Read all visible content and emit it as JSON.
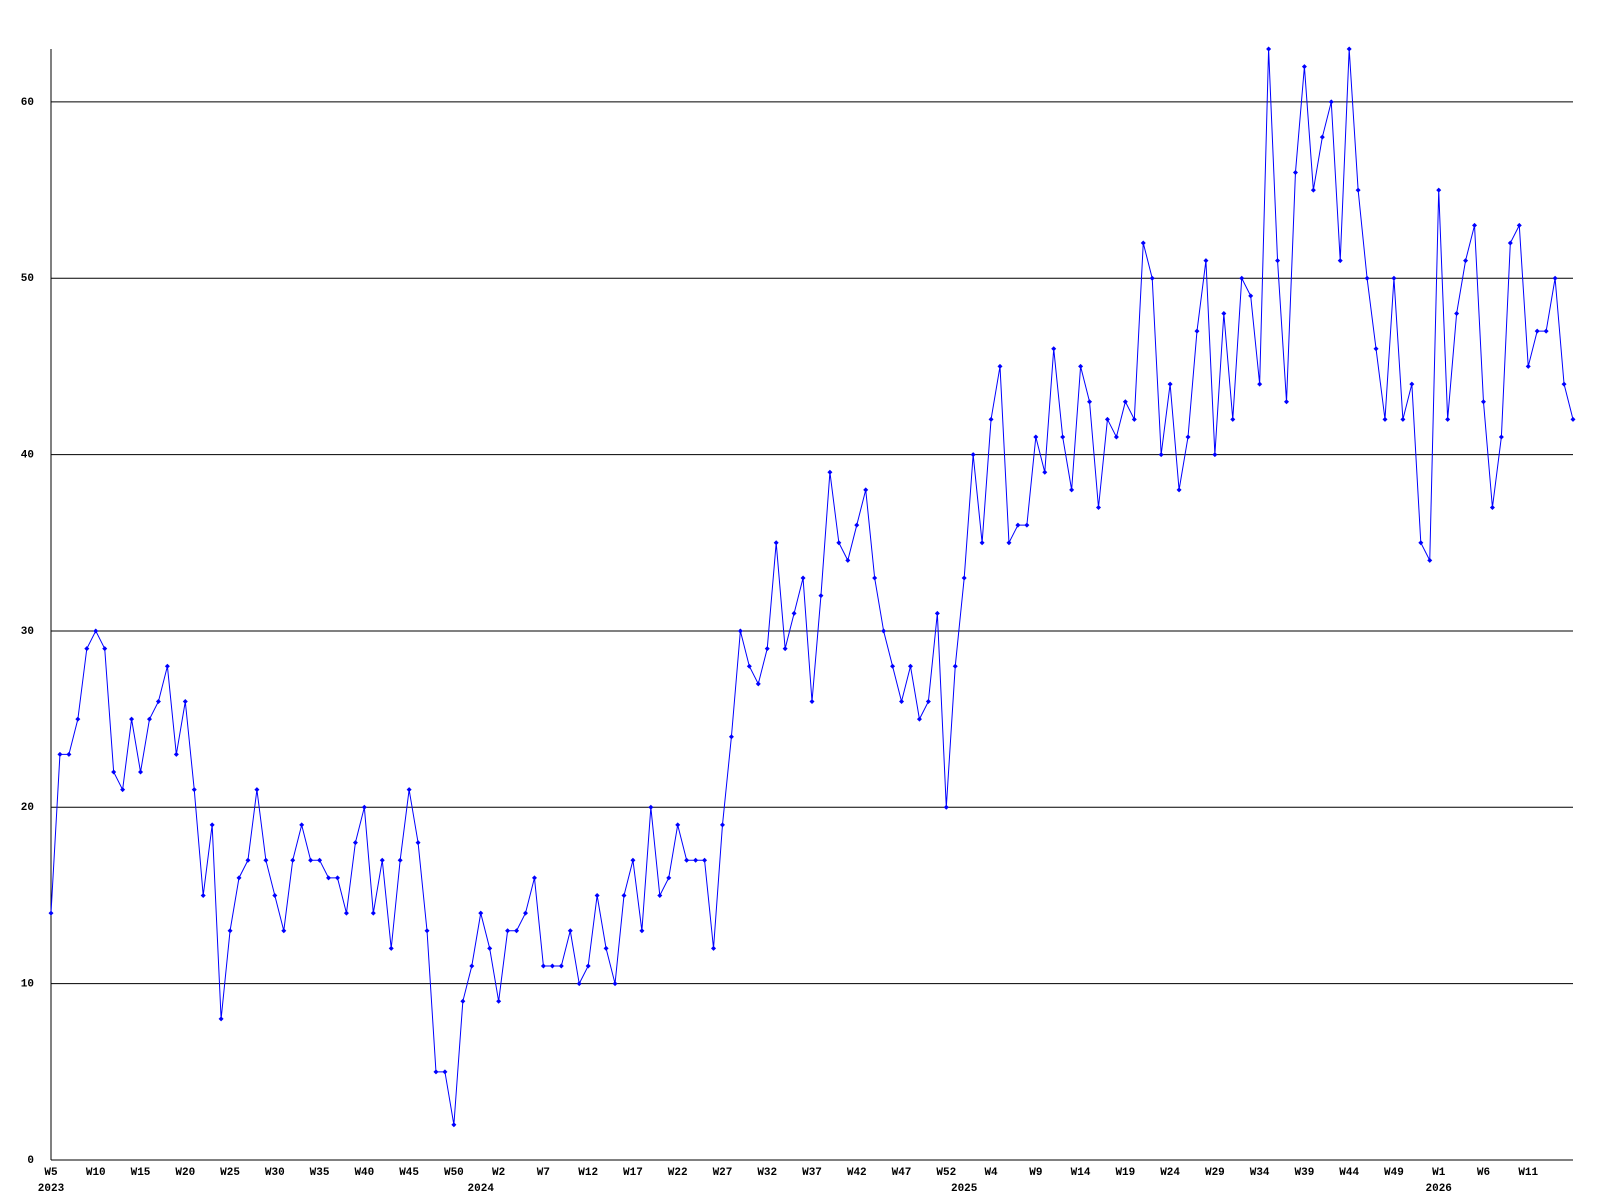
{
  "chart_data": {
    "type": "line",
    "categories": [
      "W5",
      null,
      null,
      null,
      null,
      "W10",
      null,
      null,
      null,
      null,
      "W15",
      null,
      null,
      null,
      null,
      "W20",
      null,
      null,
      null,
      null,
      "W25",
      null,
      null,
      null,
      null,
      "W30",
      null,
      null,
      null,
      null,
      "W35",
      null,
      null,
      null,
      null,
      "W40",
      null,
      null,
      null,
      null,
      "W45",
      null,
      null,
      null,
      null,
      "W50",
      null,
      null,
      null,
      null,
      "W2",
      null,
      null,
      null,
      null,
      "W7",
      null,
      null,
      null,
      null,
      "W12",
      null,
      null,
      null,
      null,
      "W17",
      null,
      null,
      null,
      null,
      "W22",
      null,
      null,
      null,
      null,
      "W27",
      null,
      null,
      null,
      null,
      "W32",
      null,
      null,
      null,
      null,
      "W37",
      null,
      null,
      null,
      null,
      "W42",
      null,
      null,
      null,
      null,
      "W47",
      null,
      null,
      null,
      null,
      "W52",
      null,
      null,
      null,
      null,
      "W4",
      null,
      null,
      null,
      null,
      "W9",
      null,
      null,
      null,
      null,
      "W14",
      null,
      null,
      null,
      null,
      "W19",
      null,
      null,
      null,
      null,
      "W24",
      null,
      null,
      null,
      null,
      "W29",
      null,
      null,
      null,
      null,
      "W34",
      null,
      null,
      null,
      null,
      "W39",
      null,
      null,
      null,
      null,
      "W44",
      null,
      null,
      null,
      null,
      "W49",
      null,
      null,
      null,
      null,
      "W1",
      null,
      null,
      null,
      null,
      "W6",
      null,
      null,
      null,
      null,
      "W11",
      null,
      null,
      null,
      null,
      null
    ],
    "year_labels": [
      "2023",
      null,
      null,
      null,
      null,
      null,
      null,
      null,
      null,
      null,
      null,
      null,
      null,
      null,
      null,
      null,
      null,
      null,
      null,
      null,
      null,
      null,
      null,
      null,
      null,
      null,
      null,
      null,
      null,
      null,
      null,
      null,
      null,
      null,
      null,
      null,
      null,
      null,
      null,
      null,
      null,
      null,
      null,
      null,
      null,
      null,
      null,
      null,
      "2024",
      null,
      null,
      null,
      null,
      null,
      null,
      null,
      null,
      null,
      null,
      null,
      null,
      null,
      null,
      null,
      null,
      null,
      null,
      null,
      null,
      null,
      null,
      null,
      null,
      null,
      null,
      null,
      null,
      null,
      null,
      null,
      null,
      null,
      null,
      null,
      null,
      null,
      null,
      null,
      null,
      null,
      null,
      null,
      null,
      null,
      null,
      null,
      null,
      null,
      null,
      null,
      null,
      null,
      "2025",
      null,
      null,
      null,
      null,
      null,
      null,
      null,
      null,
      null,
      null,
      null,
      null,
      null,
      null,
      null,
      null,
      null,
      null,
      null,
      null,
      null,
      null,
      null,
      null,
      null,
      null,
      null,
      null,
      null,
      null,
      null,
      null,
      null,
      null,
      null,
      null,
      null,
      null,
      null,
      null,
      null,
      null,
      null,
      null,
      null,
      null,
      null,
      null,
      null,
      null,
      null,
      null,
      "2026",
      null,
      null,
      null,
      null,
      null,
      null,
      null,
      null,
      null,
      null,
      null,
      null,
      null,
      null,
      null
    ],
    "series": [
      {
        "color": "#0000ff",
        "values": [
          14,
          23,
          23,
          25,
          29,
          30,
          29,
          22,
          21,
          25,
          22,
          25,
          26,
          28,
          23,
          26,
          21,
          15,
          19,
          8,
          13,
          16,
          17,
          21,
          17,
          15,
          13,
          17,
          19,
          17,
          17,
          16,
          16,
          14,
          18,
          20,
          14,
          17,
          12,
          17,
          21,
          18,
          13,
          5,
          5,
          2,
          9,
          11,
          14,
          12,
          9,
          13,
          13,
          14,
          16,
          11,
          11,
          11,
          13,
          10,
          11,
          15,
          12,
          10,
          15,
          17,
          13,
          20,
          15,
          16,
          19,
          17,
          17,
          17,
          12,
          19,
          24,
          30,
          28,
          27,
          29,
          35,
          29,
          31,
          33,
          26,
          32,
          39,
          35,
          34,
          36,
          38,
          33,
          30,
          28,
          26,
          28,
          25,
          26,
          31,
          20,
          28,
          33,
          40,
          35,
          42,
          45,
          35,
          36,
          36,
          41,
          39,
          46,
          41,
          38,
          45,
          43,
          37,
          42,
          41,
          43,
          42,
          52,
          50,
          40,
          44,
          38,
          41,
          47,
          51,
          40,
          48,
          42,
          50,
          49,
          44,
          63,
          51,
          43,
          56,
          62,
          55,
          58,
          60,
          51,
          63,
          55,
          50,
          46,
          42,
          50,
          42,
          44,
          35,
          34,
          55,
          42,
          48,
          51,
          53,
          43,
          37,
          41,
          52,
          53,
          45,
          47,
          47,
          50,
          44,
          42
        ]
      }
    ],
    "ylim": [
      0,
      63
    ],
    "yticks": [
      0,
      10,
      20,
      30,
      40,
      50,
      60
    ],
    "grid": true
  }
}
